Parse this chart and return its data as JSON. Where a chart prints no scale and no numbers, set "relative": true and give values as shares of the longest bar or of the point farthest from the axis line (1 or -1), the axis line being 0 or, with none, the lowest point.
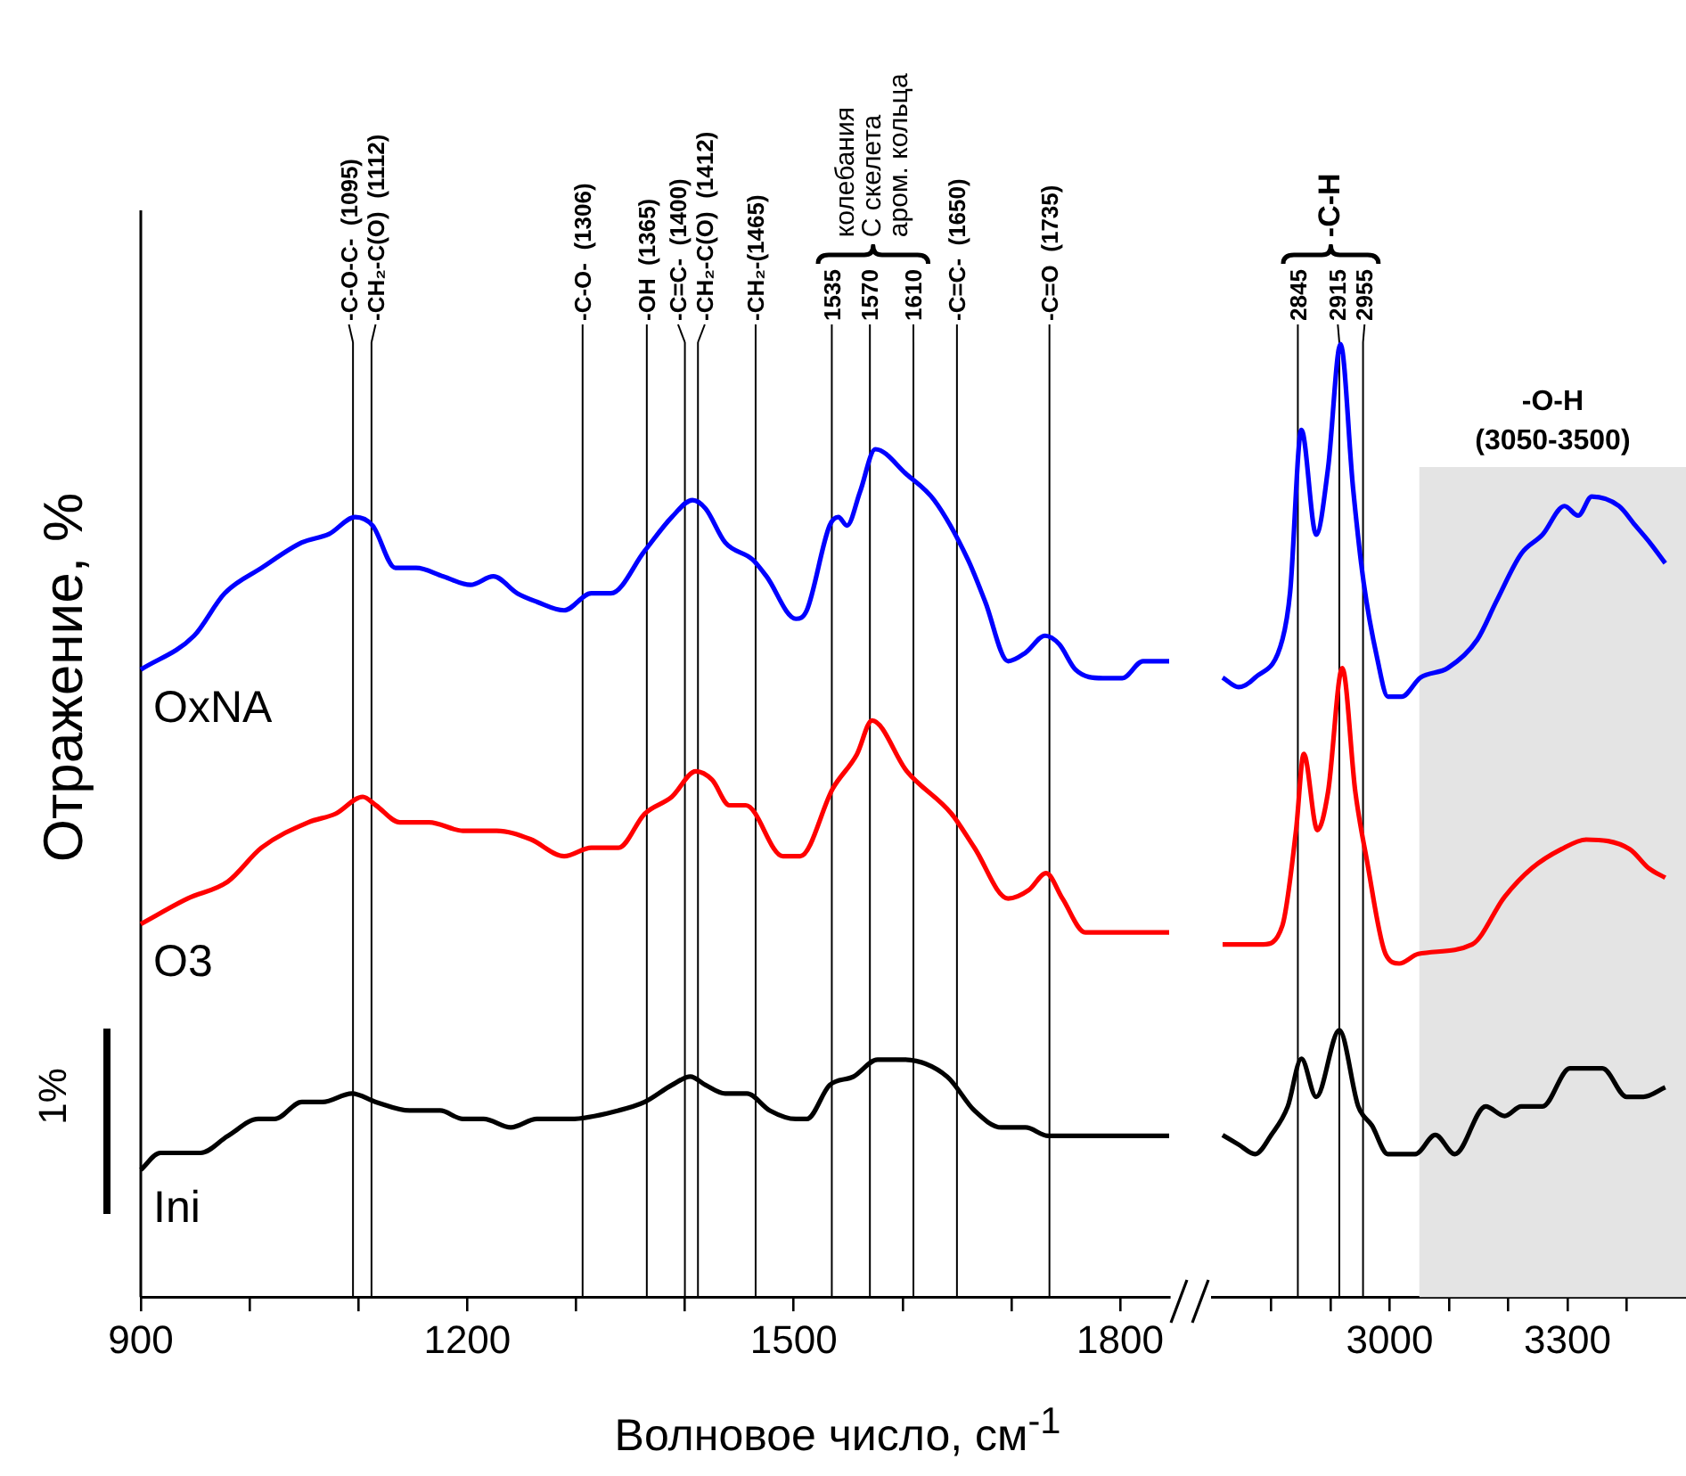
{
  "chart_data": [
    {
      "type": "line",
      "xlabel": "Волновое число, см$^{-1}$",
      "ylabel": "Отражение, %",
      "relative": true,
      "tick_labels": "x",
      "xlim": [
        900,
        1845
      ],
      "xticks": [
        900,
        {
          "value": 1000,
          "label": null
        },
        {
          "value": 1100,
          "label": null
        },
        1200,
        {
          "value": 1300,
          "label": null
        },
        {
          "value": 1400,
          "label": null
        },
        1500,
        {
          "value": 1600,
          "label": null
        },
        {
          "value": 1700,
          "label": null
        },
        1800
      ],
      "series": [
        {
          "name": "OxNA",
          "color": "#0000ff",
          "x": [
            900,
            949,
            977,
            1011,
            1048,
            1073,
            1097,
            1113,
            1134,
            1153,
            1178,
            1203,
            1224,
            1246,
            1264,
            1289,
            1314,
            1332,
            1363,
            1388,
            1407,
            1419,
            1437,
            1462,
            1475,
            1502,
            1512,
            1533,
            1541,
            1549,
            1561,
            1575,
            1604,
            1629,
            1660,
            1676,
            1697,
            1713,
            1731,
            1744,
            1759,
            1784,
            1802,
            1821,
            1845
          ],
          "values": [
            0.74,
            0.78,
            0.83,
            0.86,
            0.89,
            0.9,
            0.92,
            0.91,
            0.86,
            0.86,
            0.85,
            0.84,
            0.85,
            0.83,
            0.82,
            0.81,
            0.83,
            0.83,
            0.88,
            0.92,
            0.94,
            0.93,
            0.89,
            0.87,
            0.85,
            0.8,
            0.81,
            0.91,
            0.92,
            0.91,
            0.95,
            1,
            0.97,
            0.94,
            0.87,
            0.82,
            0.75,
            0.76,
            0.78,
            0.77,
            0.74,
            0.73,
            0.73,
            0.75,
            0.75
          ]
        },
        {
          "name": "O3",
          "color": "#ff0000",
          "x": [
            900,
            943,
            980,
            1011,
            1054,
            1079,
            1104,
            1116,
            1138,
            1165,
            1196,
            1227,
            1258,
            1289,
            1314,
            1339,
            1363,
            1388,
            1410,
            1425,
            1441,
            1456,
            1490,
            1506,
            1536,
            1558,
            1572,
            1604,
            1645,
            1666,
            1697,
            1716,
            1732,
            1747,
            1768,
            1802,
            1845
          ],
          "values": [
            0.44,
            0.47,
            0.49,
            0.53,
            0.56,
            0.57,
            0.59,
            0.58,
            0.56,
            0.56,
            0.55,
            0.55,
            0.54,
            0.52,
            0.53,
            0.53,
            0.57,
            0.59,
            0.62,
            0.61,
            0.58,
            0.58,
            0.52,
            0.52,
            0.6,
            0.64,
            0.68,
            0.62,
            0.57,
            0.53,
            0.47,
            0.48,
            0.5,
            0.47,
            0.43,
            0.43,
            0.43
          ]
        },
        {
          "name": "Ini",
          "color": "#000000",
          "x": [
            900,
            918,
            934,
            955,
            980,
            1008,
            1023,
            1048,
            1067,
            1094,
            1116,
            1147,
            1175,
            1196,
            1215,
            1240,
            1264,
            1295,
            1339,
            1363,
            1388,
            1405,
            1419,
            1437,
            1457,
            1478,
            1502,
            1512,
            1533,
            1555,
            1577,
            1601,
            1641,
            1666,
            1691,
            1713,
            1734,
            1771,
            1802,
            1821,
            1845
          ],
          "values": [
            0.15,
            0.17,
            0.17,
            0.17,
            0.19,
            0.21,
            0.21,
            0.23,
            0.23,
            0.24,
            0.23,
            0.22,
            0.22,
            0.21,
            0.21,
            0.2,
            0.21,
            0.21,
            0.22,
            0.23,
            0.25,
            0.26,
            0.25,
            0.24,
            0.24,
            0.22,
            0.21,
            0.21,
            0.25,
            0.26,
            0.28,
            0.28,
            0.26,
            0.22,
            0.2,
            0.2,
            0.19,
            0.19,
            0.19,
            0.19,
            0.19
          ]
        }
      ],
      "ref_lines": [
        {
          "axis": "x",
          "value": 1095,
          "label": "-C-O-C-  (1095)"
        },
        {
          "axis": "x",
          "value": 1112,
          "label": "-CH₂-C(O)  (1112)"
        },
        {
          "axis": "x",
          "value": 1306,
          "label": "-C-O-  (1306)"
        },
        {
          "axis": "x",
          "value": 1365,
          "label": "-OH  (1365)"
        },
        {
          "axis": "x",
          "value": 1400,
          "label": "-C=C-  (1400)"
        },
        {
          "axis": "x",
          "value": 1412,
          "label": "-CH₂-C(O)  (1412)"
        },
        {
          "axis": "x",
          "value": 1465,
          "label": "-CH₂-(1465)"
        },
        {
          "axis": "x",
          "value": 1535,
          "label": "1535"
        },
        {
          "axis": "x",
          "value": 1570,
          "label": "1570"
        },
        {
          "axis": "x",
          "value": 1610,
          "label": "1610"
        },
        {
          "axis": "x",
          "value": 1650,
          "label": "-C=C-  (1650)"
        },
        {
          "axis": "x",
          "value": 1735,
          "label": "-C=O  (1735)"
        }
      ],
      "annotations": [
        "колебания\nС скелета\nаром. кольца",
        "1%"
      ]
    },
    {
      "type": "line",
      "relative": true,
      "tick_labels": "x",
      "xlim": [
        2700,
        3500
      ],
      "xticks": [
        {
          "value": 2800,
          "label": null
        },
        {
          "value": 2900,
          "label": null
        },
        3000,
        {
          "value": 3100,
          "label": null
        },
        {
          "value": 3200,
          "label": null
        },
        3300,
        {
          "value": 3400,
          "label": null
        }
      ],
      "series": [
        {
          "color": "#0000ff",
          "x": [
            2718,
            2745,
            2773,
            2819,
            2832,
            2851,
            2876,
            2896,
            2917,
            2938,
            2956,
            2979,
            2997,
            3020,
            3052,
            3098,
            3148,
            3180,
            3222,
            3258,
            3295,
            3318,
            3341,
            3387,
            3414,
            3441,
            3465
          ],
          "values": [
            0.65,
            0.64,
            0.65,
            0.69,
            0.74,
            0.91,
            0.8,
            0.87,
            1,
            0.85,
            0.75,
            0.67,
            0.63,
            0.63,
            0.65,
            0.66,
            0.69,
            0.73,
            0.78,
            0.8,
            0.83,
            0.82,
            0.84,
            0.83,
            0.81,
            0.79,
            0.77
          ]
        },
        {
          "color": "#ff0000",
          "x": [
            2718,
            2755,
            2787,
            2819,
            2842,
            2855,
            2878,
            2896,
            2920,
            2942,
            2961,
            2993,
            3016,
            3048,
            3139,
            3194,
            3240,
            3290,
            3332,
            3405,
            3437,
            3465
          ],
          "values": [
            0.37,
            0.37,
            0.37,
            0.39,
            0.49,
            0.57,
            0.49,
            0.53,
            0.66,
            0.53,
            0.46,
            0.36,
            0.35,
            0.36,
            0.37,
            0.42,
            0.45,
            0.47,
            0.48,
            0.47,
            0.45,
            0.44
          ]
        },
        {
          "color": "#000000",
          "x": [
            2718,
            2745,
            2773,
            2800,
            2828,
            2851,
            2876,
            2915,
            2947,
            2970,
            2997,
            3043,
            3077,
            3110,
            3162,
            3194,
            3222,
            3258,
            3304,
            3332,
            3359,
            3400,
            3428,
            3465
          ],
          "values": [
            0.17,
            0.16,
            0.15,
            0.17,
            0.2,
            0.25,
            0.21,
            0.28,
            0.2,
            0.18,
            0.15,
            0.15,
            0.17,
            0.15,
            0.2,
            0.19,
            0.2,
            0.2,
            0.24,
            0.24,
            0.24,
            0.21,
            0.21,
            0.22
          ]
        }
      ],
      "ref_lines": [
        {
          "axis": "x",
          "value": 2845,
          "label": "2845"
        },
        {
          "axis": "x",
          "value": 2915,
          "label": "2915"
        },
        {
          "axis": "x",
          "value": 2955,
          "label": "2955"
        }
      ],
      "bands": [
        {
          "axis": "x",
          "from": 3050,
          "to": 3500,
          "label": "-O-H\n(3050-3500)",
          "color": "#e4e4e4"
        }
      ],
      "annotations": [
        "-C-H"
      ]
    }
  ]
}
